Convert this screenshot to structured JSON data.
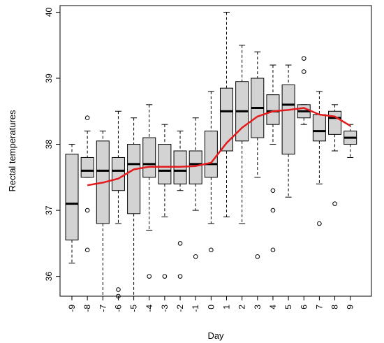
{
  "chart_data": {
    "type": "box",
    "title": "",
    "xlabel": "Day",
    "ylabel": "Rectal temperatures",
    "ylim": [
      35.7,
      40.1
    ],
    "yticks": [
      36,
      37,
      38,
      39,
      40
    ],
    "categories": [
      "-9",
      "-8",
      "-7",
      "-6",
      "-5",
      "-4",
      "-3",
      "-2",
      "-1",
      "0",
      "1",
      "2",
      "3",
      "4",
      "5",
      "6",
      "7",
      "8",
      "9"
    ],
    "boxes": [
      {
        "category": "-9",
        "whisker_low": 36.2,
        "q1": 36.55,
        "median": 37.1,
        "q3": 37.85,
        "whisker_high": 38.0,
        "outliers": []
      },
      {
        "category": "-8",
        "whisker_low": 37.5,
        "q1": 37.5,
        "median": 37.6,
        "q3": 37.8,
        "whisker_high": 38.2,
        "outliers": [
          38.4,
          37.0,
          36.4
        ]
      },
      {
        "category": "-7",
        "whisker_low": 35.7,
        "q1": 36.8,
        "median": 37.6,
        "q3": 38.05,
        "whisker_high": 38.2,
        "outliers": []
      },
      {
        "category": "-6",
        "whisker_low": 36.8,
        "q1": 37.3,
        "median": 37.6,
        "q3": 37.8,
        "whisker_high": 38.5,
        "outliers": [
          35.8,
          35.7
        ]
      },
      {
        "category": "-5",
        "whisker_low": 35.7,
        "q1": 36.95,
        "median": 37.7,
        "q3": 38.0,
        "whisker_high": 38.4,
        "outliers": []
      },
      {
        "category": "-4",
        "whisker_low": 36.7,
        "q1": 37.5,
        "median": 37.7,
        "q3": 38.1,
        "whisker_high": 38.6,
        "outliers": [
          36.0
        ]
      },
      {
        "category": "-3",
        "whisker_low": 36.9,
        "q1": 37.4,
        "median": 37.6,
        "q3": 38.0,
        "whisker_high": 38.3,
        "outliers": [
          36.0
        ]
      },
      {
        "category": "-2",
        "whisker_low": 37.3,
        "q1": 37.4,
        "median": 37.6,
        "q3": 37.9,
        "whisker_high": 38.2,
        "outliers": [
          36.5,
          36.0
        ]
      },
      {
        "category": "-1",
        "whisker_low": 37.0,
        "q1": 37.4,
        "median": 37.7,
        "q3": 37.9,
        "whisker_high": 38.4,
        "outliers": [
          36.3
        ]
      },
      {
        "category": "0",
        "whisker_low": 36.8,
        "q1": 37.5,
        "median": 37.7,
        "q3": 38.2,
        "whisker_high": 38.8,
        "outliers": [
          36.4
        ]
      },
      {
        "category": "1",
        "whisker_low": 36.9,
        "q1": 37.9,
        "median": 38.5,
        "q3": 38.85,
        "whisker_high": 40.0,
        "outliers": []
      },
      {
        "category": "2",
        "whisker_low": 36.8,
        "q1": 38.05,
        "median": 38.5,
        "q3": 38.95,
        "whisker_high": 39.5,
        "outliers": []
      },
      {
        "category": "3",
        "whisker_low": 37.5,
        "q1": 38.1,
        "median": 38.55,
        "q3": 39.0,
        "whisker_high": 39.4,
        "outliers": [
          36.3
        ]
      },
      {
        "category": "4",
        "whisker_low": 38.0,
        "q1": 38.3,
        "median": 38.5,
        "q3": 38.75,
        "whisker_high": 39.2,
        "outliers": [
          37.3,
          37.0,
          36.4
        ]
      },
      {
        "category": "5",
        "whisker_low": 37.2,
        "q1": 37.85,
        "median": 38.6,
        "q3": 38.9,
        "whisker_high": 39.2,
        "outliers": []
      },
      {
        "category": "6",
        "whisker_low": 38.3,
        "q1": 38.4,
        "median": 38.5,
        "q3": 38.6,
        "whisker_high": 38.6,
        "outliers": [
          39.3,
          39.1
        ]
      },
      {
        "category": "7",
        "whisker_low": 37.4,
        "q1": 38.05,
        "median": 38.2,
        "q3": 38.45,
        "whisker_high": 38.8,
        "outliers": [
          36.8
        ]
      },
      {
        "category": "8",
        "whisker_low": 37.9,
        "q1": 38.15,
        "median": 38.4,
        "q3": 38.5,
        "whisker_high": 38.6,
        "outliers": [
          37.1
        ]
      },
      {
        "category": "9",
        "whisker_low": 37.8,
        "q1": 38.0,
        "median": 38.1,
        "q3": 38.2,
        "whisker_high": 38.3,
        "outliers": []
      }
    ],
    "trend_line": {
      "color": "#e41a1c",
      "x": [
        "-8",
        "-7",
        "-6",
        "-5",
        "-4",
        "-3",
        "-2",
        "-1",
        "0",
        "1",
        "2",
        "3",
        "4",
        "5",
        "6",
        "7",
        "8",
        "9"
      ],
      "y": [
        37.38,
        37.42,
        37.48,
        37.62,
        37.66,
        37.66,
        37.66,
        37.67,
        37.72,
        38.02,
        38.25,
        38.42,
        38.5,
        38.52,
        38.55,
        38.45,
        38.42,
        38.28
      ]
    },
    "box_fill": "#d3d3d3",
    "grid": false
  }
}
